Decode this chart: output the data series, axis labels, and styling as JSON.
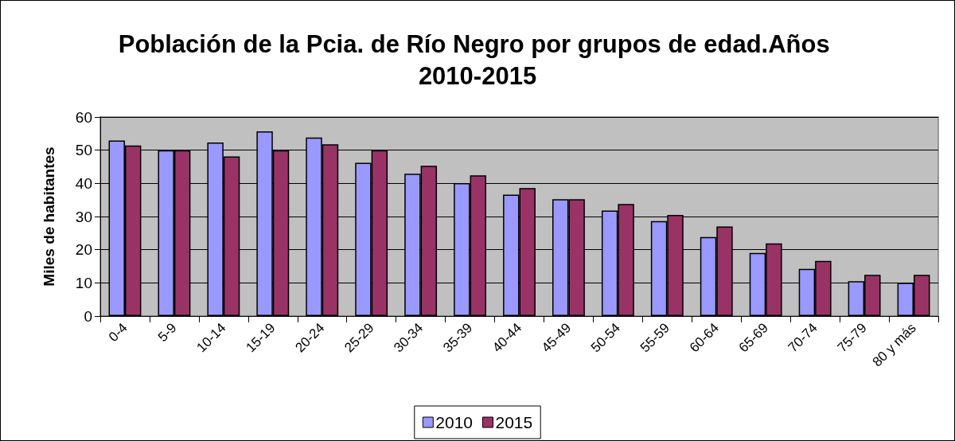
{
  "chart_data": {
    "type": "bar",
    "title": "Población de la Pcia. de Río Negro por grupos de edad.Años 2010-2015",
    "ylabel": "Miles de habitantes",
    "categories": [
      "0-4",
      "5-9",
      "10-14",
      "15-19",
      "20-24",
      "25-29",
      "30-34",
      "35-39",
      "40-44",
      "45-49",
      "50-54",
      "55-59",
      "60-64",
      "65-69",
      "70-74",
      "75-79",
      "80 y más"
    ],
    "series": [
      {
        "name": "2010",
        "color": "#9999ff",
        "values": [
          52.9,
          50,
          52.3,
          55.7,
          53.8,
          46.2,
          42.9,
          40.1,
          36.6,
          35.2,
          31.8,
          28.6,
          23.8,
          19,
          14.2,
          10.5,
          10
        ]
      },
      {
        "name": "2015",
        "color": "#993366",
        "values": [
          51.4,
          50,
          48.1,
          50,
          51.8,
          50,
          45.3,
          42.4,
          38.6,
          35.2,
          33.8,
          30.5,
          27,
          21.9,
          16.6,
          12.4,
          12.4
        ]
      }
    ],
    "ylim": [
      0,
      60
    ],
    "yticks": [
      0,
      10,
      20,
      30,
      40,
      50,
      60
    ],
    "grid": "y",
    "legend": "bottom"
  }
}
